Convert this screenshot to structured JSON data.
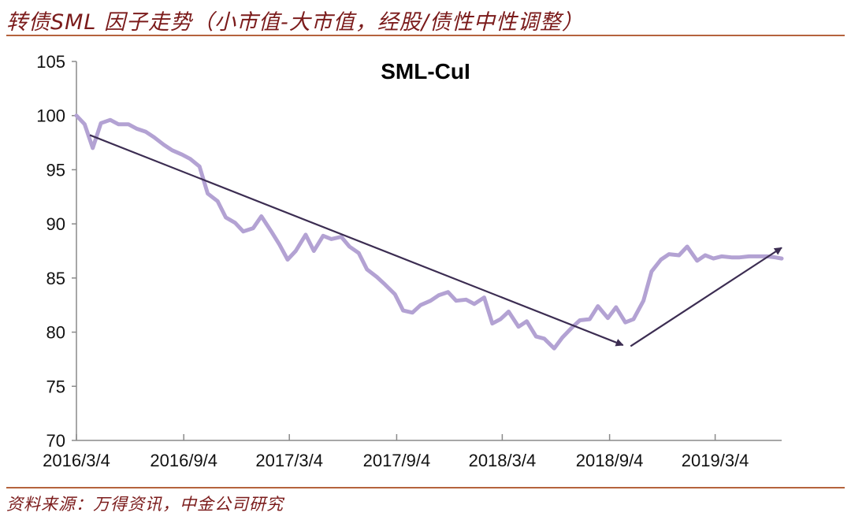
{
  "header": {
    "title": "转债SML 因子走势（小市值-大市值，经股/债性中性调整）"
  },
  "footer": {
    "source": "资料来源：万得资讯，中金公司研究"
  },
  "colors": {
    "series": "#b3a2d3",
    "trend_arrow": "#3c2d52",
    "rule": "#b5633d",
    "header_text": "#7b1b1b"
  },
  "chart_data": {
    "type": "line",
    "title": "SML-CuI",
    "xlabel": "",
    "ylabel": "",
    "ylim": [
      70,
      105
    ],
    "yticks": [
      70,
      75,
      80,
      85,
      90,
      95,
      100,
      105
    ],
    "xticks": [
      "2016/3/4",
      "2016/9/4",
      "2017/3/4",
      "2017/9/4",
      "2018/3/4",
      "2018/9/4",
      "2019/3/4"
    ],
    "xrange": [
      "2016/3/4",
      "2019/6/26"
    ],
    "grid": false,
    "legend": "none",
    "series": [
      {
        "x": [
          "2016/3/4",
          "2016/3/18",
          "2016/4/1",
          "2016/4/15",
          "2016/5/1",
          "2016/5/15",
          "2016/6/1",
          "2016/6/15",
          "2016/7/1",
          "2016/7/15",
          "2016/8/1",
          "2016/8/15",
          "2016/9/1",
          "2016/9/15",
          "2016/10/1",
          "2016/10/15",
          "2016/11/1",
          "2016/11/15",
          "2016/12/1",
          "2016/12/15",
          "2017/1/1",
          "2017/1/15",
          "2017/2/1",
          "2017/2/15",
          "2017/3/1",
          "2017/3/15",
          "2017/4/1",
          "2017/4/15",
          "2017/5/1",
          "2017/5/15",
          "2017/6/1",
          "2017/6/15",
          "2017/7/1",
          "2017/7/15",
          "2017/8/1",
          "2017/8/15",
          "2017/9/1",
          "2017/9/15",
          "2017/10/1",
          "2017/10/15",
          "2017/11/1",
          "2017/11/15",
          "2017/12/1",
          "2017/12/15",
          "2018/1/1",
          "2018/1/15",
          "2018/2/1",
          "2018/2/15",
          "2018/3/1",
          "2018/3/15",
          "2018/4/1",
          "2018/4/15",
          "2018/5/1",
          "2018/5/15",
          "2018/6/1",
          "2018/6/15",
          "2018/7/1",
          "2018/7/15",
          "2018/8/1",
          "2018/8/15",
          "2018/9/1",
          "2018/9/15",
          "2018/10/1",
          "2018/10/15",
          "2018/11/1",
          "2018/11/15",
          "2018/12/1",
          "2018/12/15",
          "2019/1/1",
          "2019/1/15",
          "2019/2/1",
          "2019/2/15",
          "2019/3/1",
          "2019/3/15",
          "2019/4/1",
          "2019/4/15",
          "2019/5/1",
          "2019/5/15",
          "2019/6/1",
          "2019/6/15",
          "2019/6/26"
        ],
        "values": [
          100.0,
          99.2,
          97.0,
          99.3,
          99.6,
          99.2,
          99.2,
          98.8,
          98.5,
          98.0,
          97.3,
          96.8,
          96.4,
          96.0,
          95.3,
          92.8,
          92.1,
          90.6,
          90.1,
          89.3,
          89.6,
          90.7,
          89.3,
          88.1,
          86.7,
          87.5,
          89.0,
          87.5,
          88.9,
          88.6,
          88.8,
          87.9,
          87.3,
          85.8,
          85.1,
          84.4,
          83.5,
          82.0,
          81.8,
          82.5,
          82.9,
          83.4,
          83.7,
          82.9,
          83.0,
          82.6,
          83.2,
          80.8,
          81.2,
          81.9,
          80.5,
          81.0,
          79.6,
          79.4,
          78.5,
          79.5,
          80.4,
          81.1,
          81.2,
          82.4,
          81.3,
          82.3,
          80.9,
          81.2,
          82.9,
          85.6,
          86.7,
          87.2,
          87.1,
          87.9,
          86.6,
          87.1,
          86.8,
          87.0,
          86.9,
          86.9,
          87.0,
          87.0,
          87.0,
          86.9,
          86.8
        ]
      }
    ],
    "trend_arrows": [
      {
        "from": [
          "2016/3/27",
          98.2
        ],
        "to": [
          "2018/9/27",
          78.8
        ]
      },
      {
        "from": [
          "2018/10/10",
          78.7
        ],
        "to": [
          "2019/6/26",
          87.8
        ]
      }
    ]
  }
}
